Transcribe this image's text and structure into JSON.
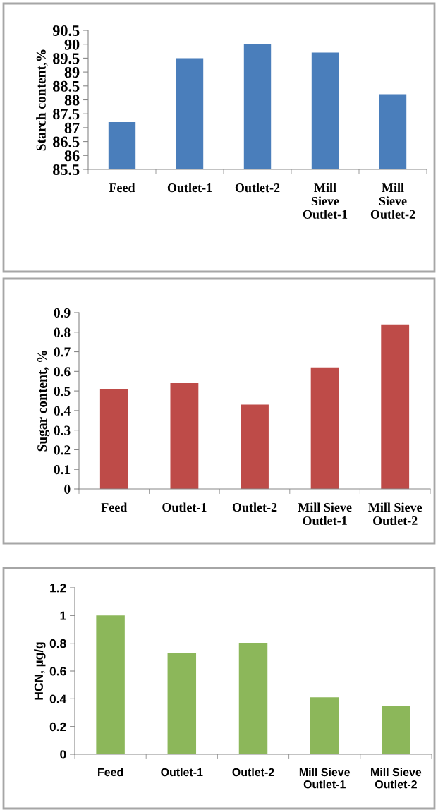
{
  "chart_data": [
    {
      "type": "bar",
      "ylabel": "Starch content,%",
      "categories": [
        "Feed",
        "Outlet-1",
        "Outlet-2",
        "Mill\nSieve\nOutlet-1",
        "Mill\nSieve\nOutlet-2"
      ],
      "values": [
        87.2,
        89.5,
        90.0,
        89.7,
        88.2
      ],
      "color": "#4a7ebb",
      "ylim": [
        85.5,
        90.5
      ],
      "yticks": [
        85.5,
        86,
        86.5,
        87,
        87.5,
        88,
        88.5,
        89,
        89.5,
        90,
        90.5
      ],
      "grid": false
    },
    {
      "type": "bar",
      "ylabel": "Sugar content, %",
      "categories": [
        "Feed",
        "Outlet-1",
        "Outlet-2",
        "Mill Sieve\nOutlet-1",
        "Mill Sieve\nOutlet-2"
      ],
      "values": [
        0.51,
        0.54,
        0.43,
        0.62,
        0.84
      ],
      "color": "#be4b48",
      "ylim": [
        0,
        0.9
      ],
      "yticks": [
        0,
        0.1,
        0.2,
        0.3,
        0.4,
        0.5,
        0.6,
        0.7,
        0.8,
        0.9
      ],
      "grid": false
    },
    {
      "type": "bar",
      "ylabel": "HCN, µg/g",
      "categories": [
        "Feed",
        "Outlet-1",
        "Outlet-2",
        "Mill Sieve\nOutlet-1",
        "Mill Sieve\nOutlet-2"
      ],
      "values": [
        1.0,
        0.73,
        0.8,
        0.41,
        0.35
      ],
      "color": "#8cb75a",
      "ylim": [
        0,
        1.2
      ],
      "yticks": [
        0,
        0.2,
        0.4,
        0.6,
        0.8,
        1,
        1.2
      ],
      "grid": false
    }
  ]
}
